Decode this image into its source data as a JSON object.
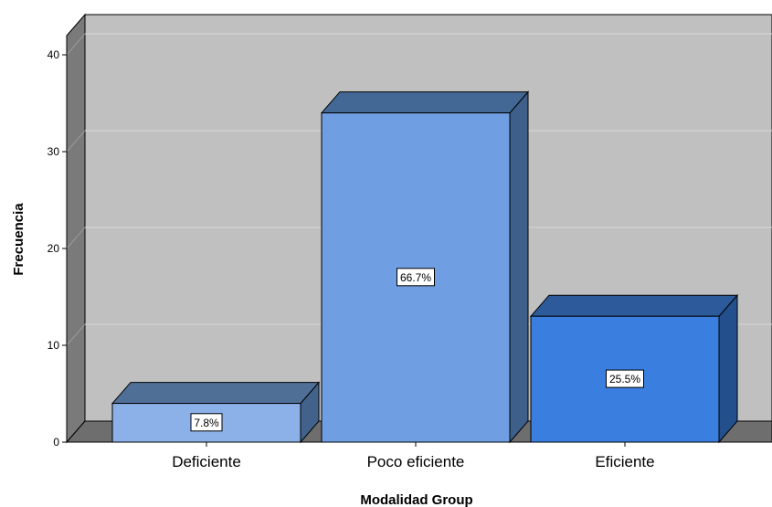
{
  "chart_data": {
    "type": "bar",
    "style": "3d",
    "title": "",
    "xlabel": "Modalidad Group",
    "ylabel": "Frecuencia",
    "categories": [
      "Deficiente",
      "Poco eficiente",
      "Eficiente"
    ],
    "values": [
      4,
      34,
      13
    ],
    "data_labels": [
      "7.8%",
      "66.7%",
      "25.5%"
    ],
    "ylim": [
      0,
      42
    ],
    "yticks": [
      0,
      10,
      20,
      30,
      40
    ],
    "ytick_labels": [
      "0",
      "10",
      "20",
      "30",
      "40"
    ],
    "grid": true,
    "legend": "none",
    "colors": {
      "bars": [
        "#8cb1e8",
        "#6f9fe2",
        "#3a7fe0"
      ],
      "bar_tops": [
        "#4f6f97",
        "#436895",
        "#2c5a9a"
      ],
      "bar_sides": [
        "#42628c",
        "#3e5f89",
        "#234f8c"
      ],
      "plot_background": "#c0c0c0",
      "back_wall_side": "#7a7a7a",
      "floor": "#6e6e6e",
      "gridline": "#d8d8d8"
    }
  }
}
